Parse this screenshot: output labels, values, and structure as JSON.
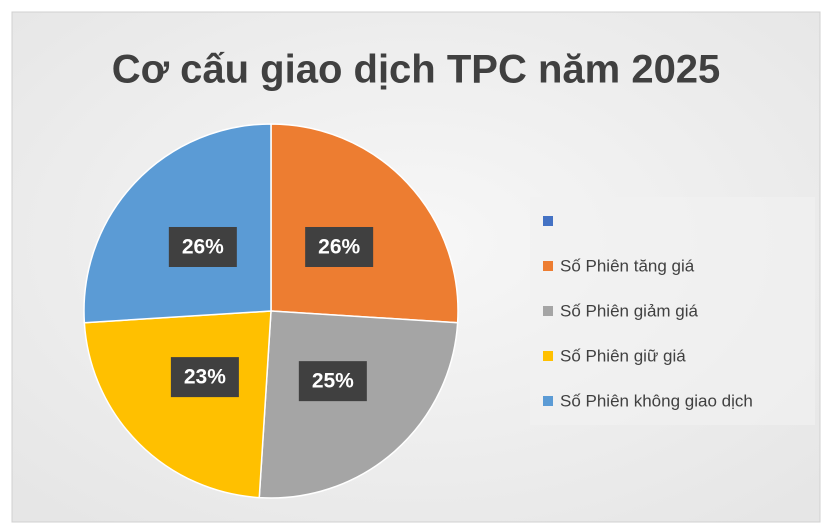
{
  "chart_data": {
    "type": "pie",
    "title": "Cơ cấu giao dịch TPC năm 2025",
    "categories": [
      null,
      "Số Phiên tăng giá",
      "Số Phiên giảm giá",
      "Số Phiên giữ giá",
      "Số Phiên không giao dịch"
    ],
    "values": [
      0,
      26,
      25,
      23,
      26
    ],
    "value_labels": [
      null,
      "26%",
      "25%",
      "23%",
      "26%"
    ],
    "colors": [
      "#4472c4",
      "#ed7d31",
      "#a5a5a5",
      "#ffc000",
      "#5b9bd5"
    ],
    "legend": "right"
  }
}
